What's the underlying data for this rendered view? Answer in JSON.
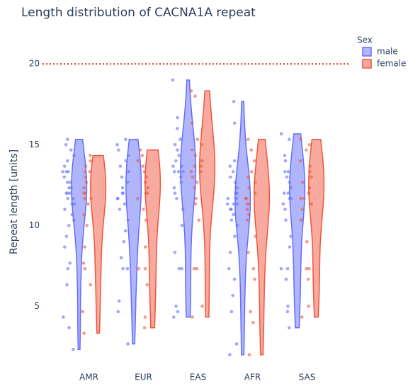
{
  "chart_data": {
    "type": "violin",
    "title": "Length distribution of CACNA1A repeat",
    "y_label": "Repeat length [units]",
    "legend_title": "Sex",
    "categories": [
      "AMR",
      "EUR",
      "EAS",
      "AFR",
      "SAS"
    ],
    "ylim": [
      1.6,
      22.2
    ],
    "yticks": [
      5,
      10,
      15,
      20
    ],
    "grid": false,
    "threshold": 20,
    "threshold_color": "#e8201a",
    "series": [
      {
        "name": "male",
        "color": "#636efa",
        "values": [
          [
            2.33,
            4.33,
            3.67,
            6.33,
            7.33,
            7.67,
            8.67,
            9.33,
            10,
            10.33,
            10.67,
            11,
            11.33,
            11.33,
            11.67,
            11.67,
            12,
            12,
            12,
            12.33,
            12.33,
            12.67,
            12.67,
            13,
            13.33,
            13.33,
            13.33,
            13.67,
            14,
            14.33,
            14.67,
            15,
            15.33
          ],
          [
            2.67,
            4.67,
            5.33,
            7.33,
            7.33,
            8,
            9,
            9.67,
            10.33,
            11,
            11.33,
            11.67,
            11.67,
            12,
            12,
            12.33,
            12.67,
            13,
            13.33,
            13.67,
            14,
            14.33,
            14.67,
            15,
            15.33
          ],
          [
            4.33,
            4.67,
            5,
            7.33,
            7.33,
            8.33,
            10,
            11,
            11.67,
            12,
            12.33,
            12.67,
            13,
            13.33,
            13.33,
            13.33,
            13.67,
            13.67,
            14,
            14.33,
            14.67,
            15,
            15.33,
            16,
            16.67,
            19
          ],
          [
            2,
            2.67,
            4.67,
            5.67,
            6.67,
            7.33,
            8.33,
            9.33,
            10,
            10.33,
            10.67,
            11,
            11,
            11.33,
            11.33,
            11.33,
            11.67,
            11.67,
            12,
            12,
            12.33,
            12.67,
            13,
            13.33,
            13.67,
            14,
            16.33,
            17.67
          ],
          [
            3.67,
            4.67,
            5,
            6.67,
            7.33,
            7.33,
            8.67,
            9.33,
            10.33,
            11,
            11.33,
            11.67,
            11.67,
            12,
            12,
            12.33,
            12.67,
            13,
            13.33,
            13.33,
            14,
            14.33,
            15.33,
            15.67
          ]
        ]
      },
      {
        "name": "female",
        "color": "#ef553b",
        "values": [
          [
            3.33,
            4.67,
            6.33,
            7.33,
            7.67,
            8.67,
            10,
            10.67,
            11.33,
            11.67,
            11.67,
            12,
            12,
            12.33,
            12.67,
            13,
            13.33,
            13.33,
            13.67,
            14,
            14.33
          ],
          [
            3.67,
            4.33,
            6.33,
            7.33,
            7.33,
            8.67,
            10.33,
            11,
            11.67,
            12,
            12,
            12.33,
            12.67,
            13,
            13.33,
            13.67,
            14,
            14.33,
            14.67
          ],
          [
            4.33,
            5,
            7.33,
            7.33,
            10.33,
            11.33,
            11.67,
            12.33,
            12.67,
            13,
            13.33,
            13.33,
            13.67,
            13.67,
            14,
            14.33,
            14.67,
            15,
            15.33,
            16.33,
            18,
            18.33
          ],
          [
            2,
            4,
            4.67,
            6.67,
            7.33,
            8.33,
            9.33,
            10.33,
            10.67,
            11,
            11.33,
            11.33,
            11.67,
            11.67,
            12,
            12.33,
            12.67,
            13,
            13.33,
            14,
            14.67,
            15.33
          ],
          [
            4.33,
            5,
            6.67,
            7.33,
            7.33,
            9,
            10.33,
            11,
            11.33,
            11.67,
            11.67,
            12,
            12.33,
            12.67,
            13,
            13.33,
            13.67,
            14,
            14.67,
            15,
            15.33
          ]
        ]
      }
    ]
  }
}
